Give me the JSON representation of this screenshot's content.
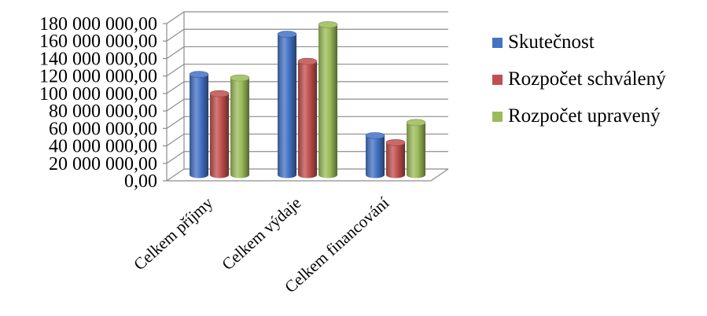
{
  "chart_data": {
    "type": "bar",
    "title": "",
    "xlabel": "",
    "ylabel": "",
    "categories": [
      "Celkem příjmy",
      "Celkem výdaje",
      "Celkem financování"
    ],
    "series": [
      {
        "name": "Skutečnost",
        "values": [
          115000000,
          161000000,
          45000000
        ],
        "color": "#4472C4"
      },
      {
        "name": "Rozpočet schválený",
        "values": [
          93000000,
          130000000,
          37000000
        ],
        "color": "#C0504D"
      },
      {
        "name": "Rozpočet upravený",
        "values": [
          111000000,
          172000000,
          60000000
        ],
        "color": "#9BBB59"
      }
    ],
    "ylim": [
      0,
      180000000
    ],
    "yticks": [
      {
        "value": 0,
        "label": "0,00"
      },
      {
        "value": 20000000,
        "label": "20 000 000,00"
      },
      {
        "value": 40000000,
        "label": "40 000 000,00"
      },
      {
        "value": 60000000,
        "label": "60 000 000,00"
      },
      {
        "value": 80000000,
        "label": "80 000 000,00"
      },
      {
        "value": 100000000,
        "label": "100 000 000,00"
      },
      {
        "value": 120000000,
        "label": "120 000 000,00"
      },
      {
        "value": 140000000,
        "label": "140 000 000,00"
      },
      {
        "value": 160000000,
        "label": "160 000 000,00"
      },
      {
        "value": 180000000,
        "label": "180 000 000,00"
      }
    ],
    "grid": true,
    "legend_position": "right",
    "style": "3d-cylinder"
  }
}
